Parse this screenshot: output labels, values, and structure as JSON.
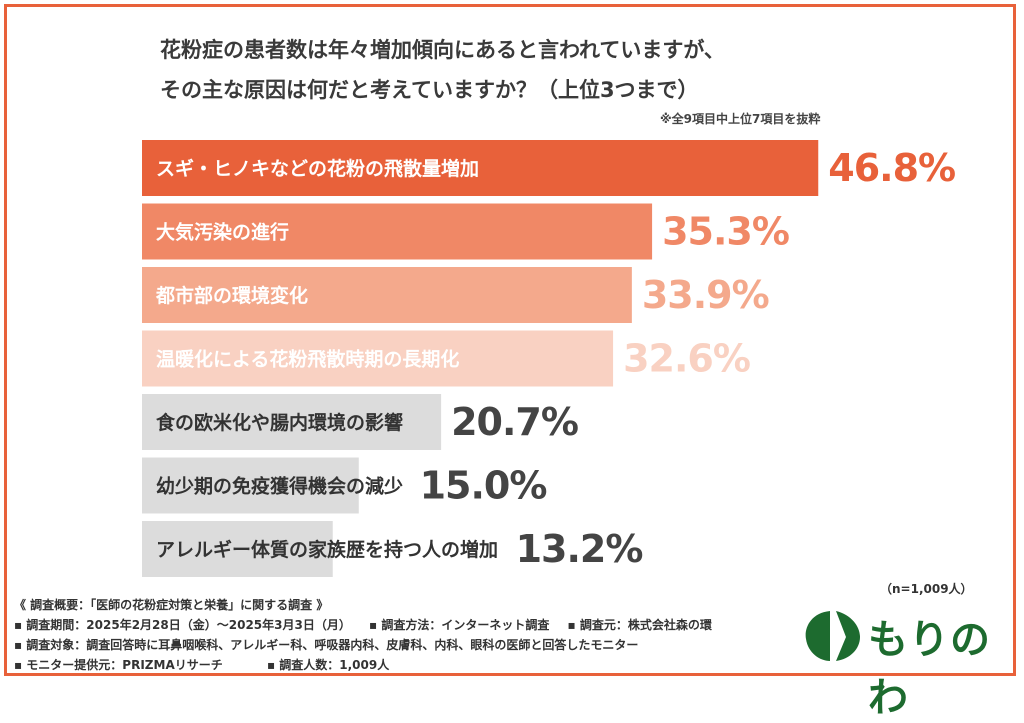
{
  "title_line1": "花粉症の患者数は年々増加傾向にあると言われていますが、",
  "title_line2": "その主な原因は何だと考えていますか？（上位3つまで）",
  "note": "※全9項目中上位7項目を抜粋",
  "sample": "（n=1,009人）",
  "chart_data": {
    "type": "bar",
    "orientation": "horizontal",
    "categories": [
      "スギ・ヒノキなどの花粉の飛散量増加",
      "大気汚染の進行",
      "都市部の環境変化",
      "温暖化による花粉飛散時期の長期化",
      "食の欧米化や腸内環境の影響",
      "幼少期の免疫獲得機会の減少",
      "アレルギー体質の家族歴を持つ人の増加"
    ],
    "values": [
      46.8,
      35.3,
      33.9,
      32.6,
      20.7,
      15.0,
      13.2
    ],
    "value_labels": [
      "46.8%",
      "35.3%",
      "33.9%",
      "32.6%",
      "20.7%",
      "15.0%",
      "13.2%"
    ],
    "colors": [
      "#e8613a",
      "#f08866",
      "#f4a98c",
      "#f9d1c2",
      "#dcdcdc",
      "#dcdcdc",
      "#dcdcdc"
    ],
    "label_colors": [
      "#ffffff",
      "#ffffff",
      "#ffffff",
      "#ffffff",
      "#333333",
      "#333333",
      "#333333"
    ],
    "value_colors": [
      "#e8613a",
      "#f08866",
      "#f4a98c",
      "#f9d1c2",
      "#444444",
      "#444444",
      "#444444"
    ],
    "xlim": [
      0,
      50
    ],
    "grid": false,
    "legend": "none"
  },
  "footer": {
    "line1": "《 調査概要：「医師の花粉症対策と栄養」に関する調査 》",
    "line2a": "▪ 調査期間：2025年2月28日（金）〜2025年3月3日（月）",
    "line2b": "▪ 調査方法：インターネット調査",
    "line2c": "▪ 調査元：株式会社森の環",
    "line3": "▪ 調査対象：調査回答時に耳鼻咽喉科、アレルギー科、呼吸器内科、皮膚科、内科、眼科の医師と回答したモニター",
    "line4a": "▪ モニター提供元：PRIZMAリサーチ",
    "line4b": "▪ 調査人数：1,009人"
  },
  "logo": {
    "text": "もりのわ",
    "color": "#1d6b2f"
  }
}
